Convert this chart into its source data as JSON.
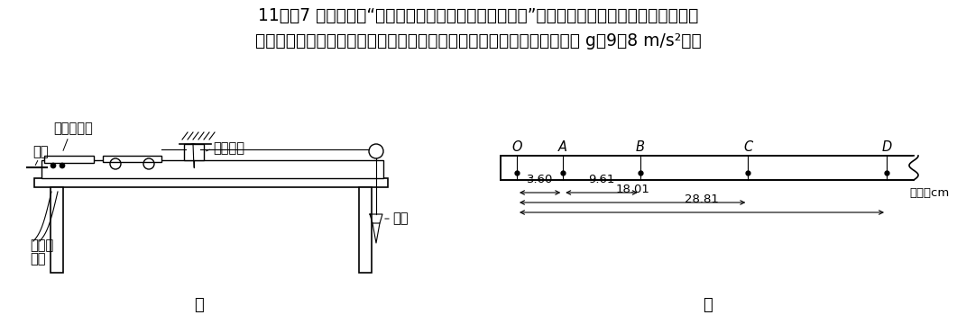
{
  "title_line1": "11．（7 分）在探究“物体质量一定时加速度与力的关系”的实验中，小明同学做了如图甲所示",
  "title_line2": "的实验改进，在调节桌面水平后，添加了力传感器来测细线中的拉力（取 g＝9．8 m/s²）。",
  "label_jia": "甲",
  "label_yi": "乙",
  "label_zhidai": "纸带",
  "label_dadianji": "打点计时器",
  "label_liqingan": "力传感器",
  "label_jiaoliu1": "接交流",
  "label_jiaoliu2": "电源",
  "label_shatong": "沙桶",
  "points": [
    "O",
    "A",
    "B",
    "C",
    "D"
  ],
  "dim_3_60": "3.60",
  "dim_9_61": "9.61",
  "dim_18_01": "18.01",
  "dim_28_81": "28.81",
  "unit_label": "单位：cm",
  "bg_color": "#ffffff",
  "line_color": "#000000",
  "fontsize_main": 13.5,
  "fontsize_label": 10.5,
  "fontsize_dim": 9.5,
  "fontsize_caption": 13
}
